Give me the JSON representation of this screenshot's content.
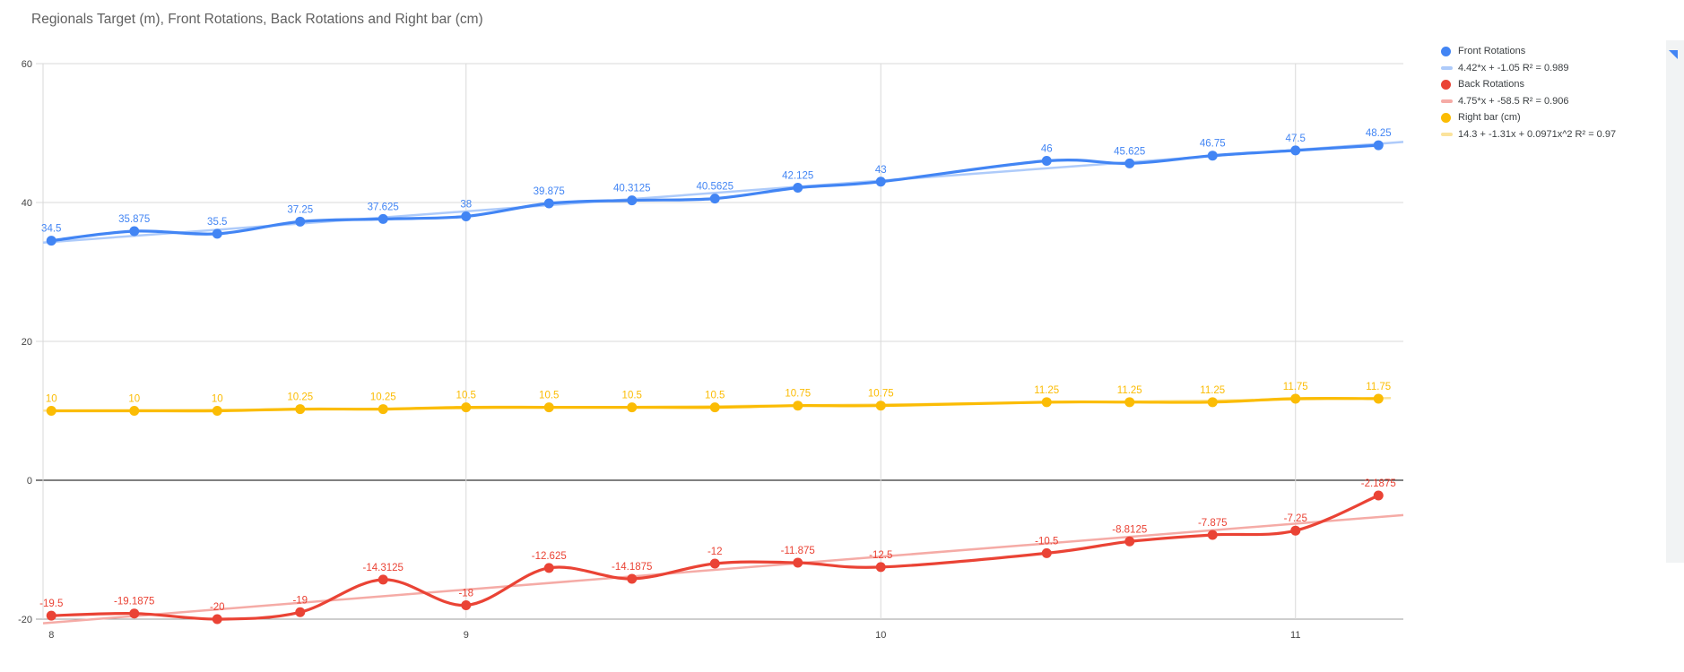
{
  "chart_data": {
    "type": "line",
    "title": "Regionals Target (m), Front Rotations, Back Rotations and Right bar (cm)",
    "xlabel": "",
    "ylabel": "",
    "x": [
      8,
      8.2,
      8.4,
      8.6,
      8.8,
      9,
      9.2,
      9.4,
      9.6,
      9.8,
      10,
      10.4,
      10.6,
      10.8,
      11,
      11.2
    ],
    "x_ticks": [
      8,
      9,
      10,
      11
    ],
    "y_ticks": [
      -20,
      0,
      20,
      40,
      60
    ],
    "xlim": [
      7.98,
      11.26
    ],
    "ylim": [
      -20,
      60
    ],
    "grid": true,
    "legend_position": "right",
    "point_labels": true,
    "series": [
      {
        "name": "Front Rotations",
        "color": "#4285f4",
        "values": [
          34.5,
          35.875,
          35.5,
          37.25,
          37.625,
          38,
          39.875,
          40.3125,
          40.5625,
          42.125,
          43,
          46,
          45.625,
          46.75,
          47.5,
          48.25
        ],
        "trendline": {
          "type": "linear",
          "equation": "4.42*x + -1.05 R² = 0.989",
          "slope": 4.42,
          "intercept": -1.05,
          "r_squared": 0.989,
          "color": "#aecbfa"
        }
      },
      {
        "name": "Back Rotations",
        "color": "#ea4335",
        "values": [
          -19.5,
          -19.1875,
          -20,
          -19,
          -14.3125,
          -18,
          -12.625,
          -14.1875,
          -12,
          -11.875,
          -12.5,
          -10.5,
          -8.8125,
          -7.875,
          -7.25,
          -2.1875
        ],
        "trendline": {
          "type": "linear",
          "equation": "4.75*x + -58.5 R² = 0.906",
          "slope": 4.75,
          "intercept": -58.5,
          "r_squared": 0.906,
          "color": "#f5aba6"
        }
      },
      {
        "name": "Right bar (cm)",
        "color": "#fbbc04",
        "values": [
          10,
          10,
          10,
          10.25,
          10.25,
          10.5,
          10.5,
          10.5,
          10.5,
          10.75,
          10.75,
          11.25,
          11.25,
          11.25,
          11.75,
          11.75
        ],
        "trendline": {
          "type": "quadratic",
          "equation": "14.3 + -1.31x + 0.0971x^2 R² = 0.97",
          "coefficients": [
            14.3,
            -1.31,
            0.0971
          ],
          "r_squared": 0.97,
          "color": "#fbe39b"
        }
      }
    ],
    "colors": {
      "background": "#ffffff",
      "title": "#616161",
      "gridline": "#d9d9d9",
      "zero_line": "#000000",
      "baseline": "#9e9e9e",
      "tick_label": "#444444"
    }
  },
  "legend": {
    "entries": [
      {
        "type": "series",
        "label": "Front Rotations",
        "color": "#4285f4"
      },
      {
        "type": "trendline",
        "label": "4.42*x + -1.05 R² = 0.989",
        "color": "#aecbfa"
      },
      {
        "type": "series",
        "label": "Back Rotations",
        "color": "#ea4335"
      },
      {
        "type": "trendline",
        "label": "4.75*x + -58.5 R² = 0.906",
        "color": "#f5aba6"
      },
      {
        "type": "series",
        "label": "Right bar (cm)",
        "color": "#fbbc04"
      },
      {
        "type": "trendline",
        "label": "14.3 + -1.31x + 0.0971x^2 R² = 0.97",
        "color": "#fbe39b"
      }
    ]
  }
}
